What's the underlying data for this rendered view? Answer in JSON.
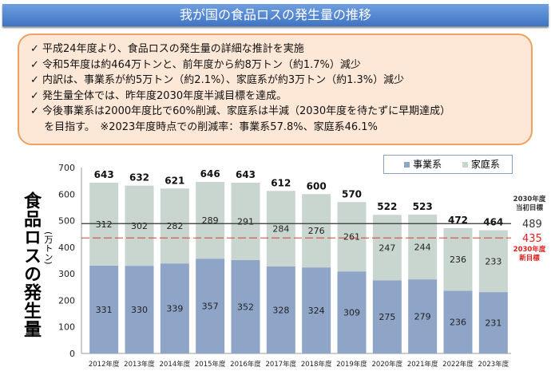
{
  "header": {
    "title": "我が国の食品ロスの発生量の推移"
  },
  "summary": {
    "lines": [
      "✓ 平成24年度より、食品ロスの発生量の詳細な推計を実施",
      "✓ 令和5年度は約464万トンと、前年度から約8万トン（約1.7%）減少",
      "✓ 内訳は、事業系が約5万トン（約2.1%）、家庭系が約3万トン（約1.3%）減少",
      "✓ 発生量全体では、昨年度2030年度半減目標を達成。",
      "✓ 今後事業系は2000年度比で60%削減、家庭系は半減（2030年度を待たずに早期達成）",
      "　 を目指す。　※2023年度時点での削減率：事業系57.8%、家庭系46.1%"
    ]
  },
  "chart_data": {
    "type": "bar",
    "stacked": true,
    "categories": [
      "2012年度",
      "2013年度",
      "2014年度",
      "2015年度",
      "2016年度",
      "2017年度",
      "2018年度",
      "2019年度",
      "2020年度",
      "2021年度",
      "2022年度",
      "2023年度"
    ],
    "series": [
      {
        "name": "事業系",
        "color": "#8ea5c8",
        "values": [
          331,
          330,
          339,
          357,
          352,
          328,
          324,
          309,
          275,
          279,
          236,
          231
        ]
      },
      {
        "name": "家庭系",
        "color": "#c9d6cf",
        "values": [
          312,
          302,
          282,
          289,
          291,
          284,
          276,
          261,
          247,
          244,
          236,
          233
        ]
      }
    ],
    "totals": [
      643,
      632,
      621,
      646,
      643,
      612,
      600,
      570,
      522,
      523,
      472,
      464
    ],
    "ylabel": "食品ロスの発生量",
    "yunit": "(万トン)",
    "ylim": [
      0,
      700
    ],
    "yticks": [
      0,
      100,
      200,
      300,
      400,
      500,
      600,
      700
    ],
    "legend": "top-right",
    "reference_lines": [
      {
        "value": 489,
        "label": "2030年度\n当初目標",
        "value_label": "489",
        "color": "#333333"
      },
      {
        "value": 435,
        "label": "2030年度\n新目標",
        "value_label": "435",
        "color": "#e02020"
      }
    ]
  }
}
